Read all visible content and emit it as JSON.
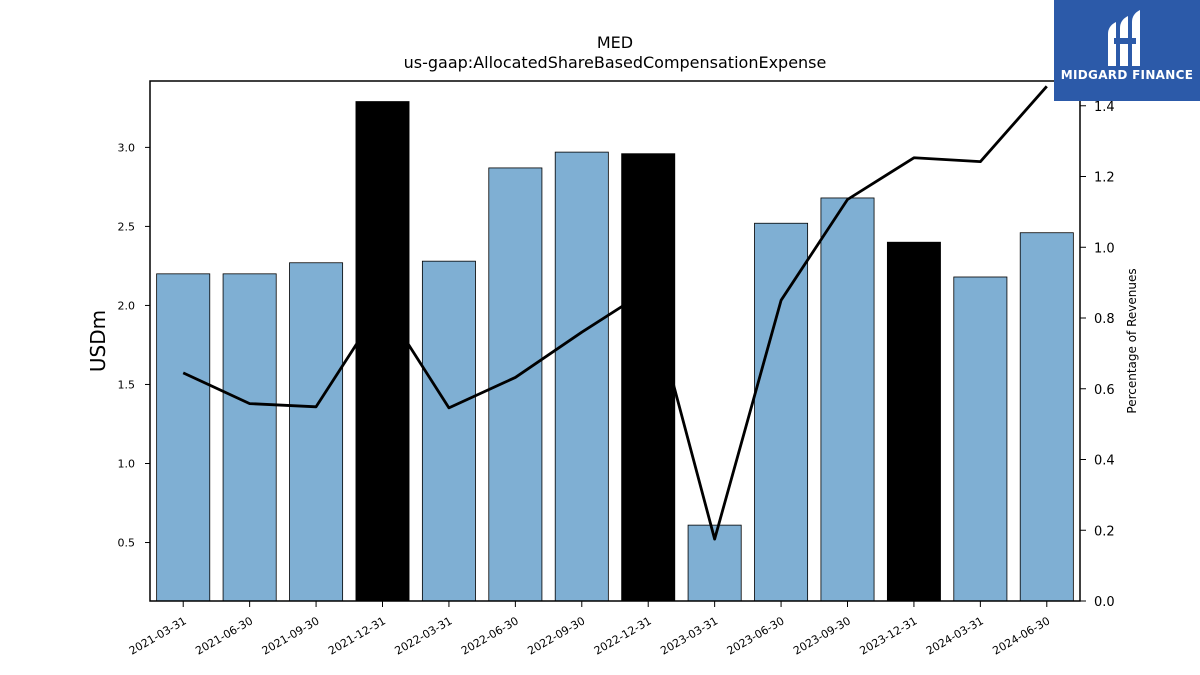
{
  "chart_data": {
    "type": "bar",
    "title": "MED",
    "subtitle": "us-gaap:AllocatedShareBasedCompensationExpense",
    "ylabel": "USDm",
    "ylabel_right": "Percentage of Revenues",
    "categories": [
      "2021-03-31",
      "2021-06-30",
      "2021-09-30",
      "2021-12-31",
      "2022-03-31",
      "2022-06-30",
      "2022-09-30",
      "2022-12-31",
      "2023-03-31",
      "2023-06-30",
      "2023-09-30",
      "2023-12-31",
      "2024-03-31",
      "2024-06-30"
    ],
    "series": [
      {
        "type": "bar",
        "axis": "left",
        "values": [
          2.2,
          2.2,
          2.27,
          3.29,
          2.28,
          2.87,
          2.97,
          2.96,
          0.61,
          2.52,
          2.68,
          2.4,
          2.18,
          2.46
        ],
        "highlight": [
          false,
          false,
          false,
          true,
          false,
          false,
          false,
          true,
          false,
          false,
          false,
          true,
          false,
          false
        ]
      },
      {
        "type": "line",
        "axis": "right",
        "values": [
          0.645,
          0.558,
          0.549,
          0.84,
          0.546,
          0.632,
          0.76,
          0.88,
          0.175,
          0.85,
          1.135,
          1.253,
          1.242,
          1.455
        ]
      }
    ],
    "ylim": [
      0.13,
      3.42
    ],
    "yticks": [
      0.5,
      1.0,
      1.5,
      2.0,
      2.5,
      3.0
    ],
    "ytick_labels": [
      "0.5",
      "1.0",
      "1.5",
      "2.0",
      "2.5",
      "3.0"
    ],
    "ylim_right": [
      0.0,
      1.47
    ],
    "yticks_right": [
      0.0,
      0.2,
      0.4,
      0.6,
      0.8,
      1.0,
      1.2,
      1.4
    ],
    "ytick_labels_right": [
      "0.0",
      "0.2",
      "0.4",
      "0.6",
      "0.8",
      "1.0",
      "1.2",
      "1.4"
    ],
    "colors": {
      "bar": "#7fafd3",
      "bar_highlight": "#000000",
      "line": "#000000",
      "axes": "#000000"
    },
    "grid": false,
    "legend": "none"
  },
  "logo": {
    "text": "MIDGARD FINANCE",
    "icon": "midgard-logo-icon",
    "color": "#2c5aa9"
  }
}
